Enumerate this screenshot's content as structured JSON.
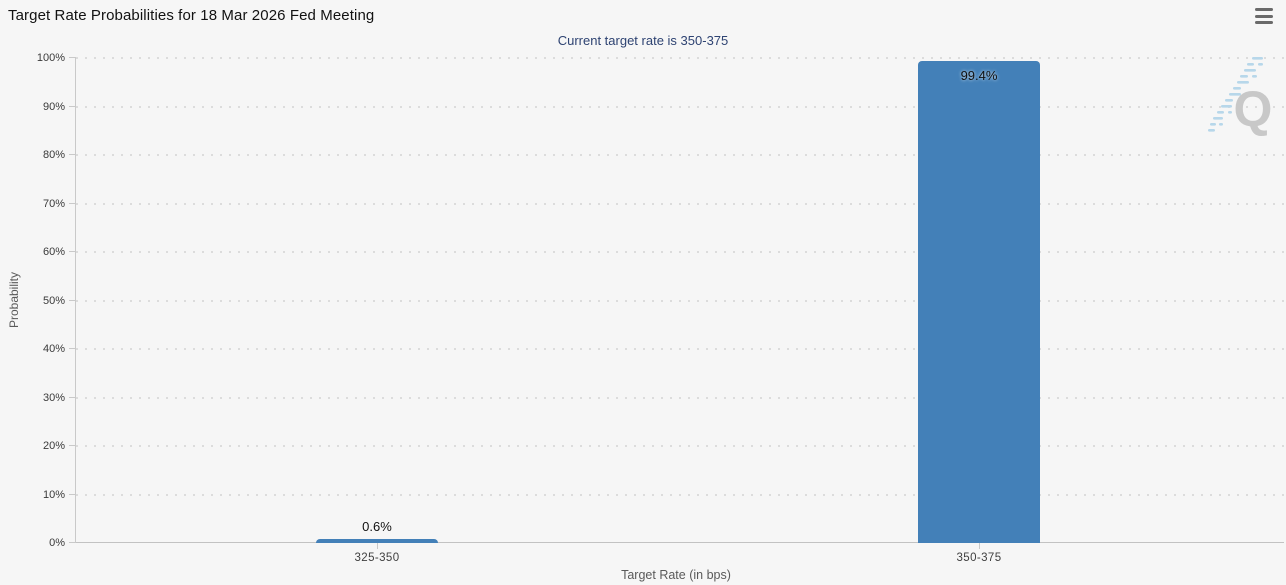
{
  "header": {
    "title": "Target Rate Probabilities for 18 Mar 2026 Fed Meeting",
    "subtitle": "Current target rate is 350-375",
    "menu_icon": "hamburger-menu-icon"
  },
  "watermark": {
    "icon": "quikstrike-q-watermark",
    "letter": "Q",
    "letter_color": "#c8c8c8",
    "dash_color": "#b7d7ea"
  },
  "chart_data": {
    "type": "bar",
    "title": "Target Rate Probabilities for 18 Mar 2026 Fed Meeting",
    "subtitle": "Current target rate is 350-375",
    "categories": [
      "325-350",
      "350-375"
    ],
    "values": [
      0.6,
      99.4
    ],
    "value_labels": [
      "0.6%",
      "99.4%"
    ],
    "xlabel": "Target Rate (in bps)",
    "ylabel": "Probability",
    "ylim": [
      0,
      100
    ],
    "ytick_step": 10,
    "ytick_labels": [
      "0%",
      "10%",
      "20%",
      "30%",
      "40%",
      "50%",
      "60%",
      "70%",
      "80%",
      "90%",
      "100%"
    ],
    "grid": true,
    "grid_style": "dotted",
    "legend_position": "none",
    "bar_color": "#4380b8",
    "background_color": "#f6f6f6"
  }
}
